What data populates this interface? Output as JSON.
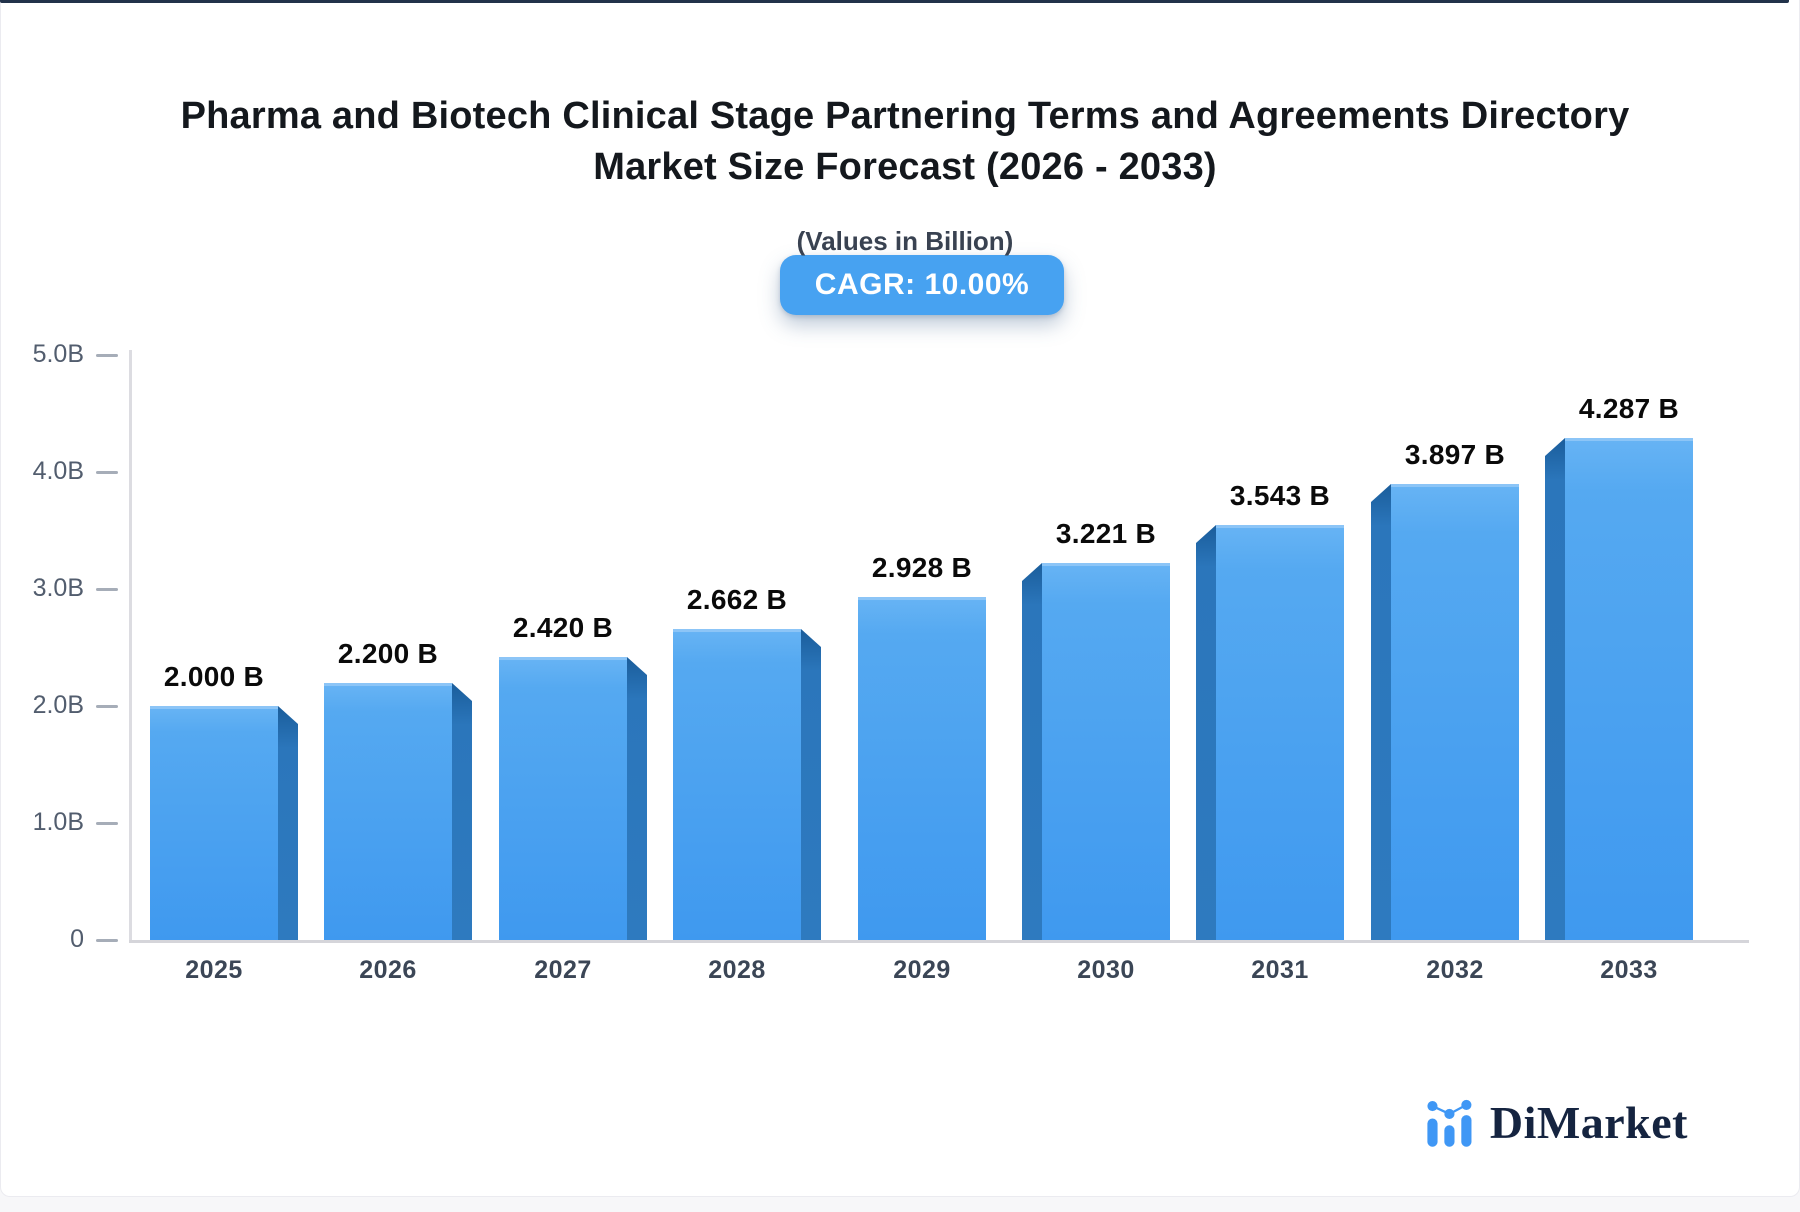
{
  "header": {
    "title_line1": "Pharma and Biotech Clinical Stage Partnering Terms and Agreements Directory",
    "title_line2": "Market Size Forecast (2026 - 2033)",
    "subtitle": "(Values in Billion)",
    "cagr_badge": "CAGR: 10.00%",
    "badge_color": "#47a2f1"
  },
  "chart_data": {
    "type": "bar",
    "title": "Pharma and Biotech Clinical Stage Partnering Terms and Agreements Directory Market Size Forecast (2026 - 2033)",
    "subtitle": "(Values in Billion)",
    "cagr": "10.00%",
    "categories": [
      "2025",
      "2026",
      "2027",
      "2028",
      "2029",
      "2030",
      "2031",
      "2032",
      "2033"
    ],
    "values": [
      2.0,
      2.2,
      2.42,
      2.662,
      2.928,
      3.221,
      3.543,
      3.897,
      4.287
    ],
    "value_labels": [
      "2.000 B",
      "2.200 B",
      "2.420 B",
      "2.662 B",
      "2.928 B",
      "3.221 B",
      "3.543 B",
      "3.897 B",
      "4.287 B"
    ],
    "unit": "Billion",
    "xlabel": "",
    "ylabel": "",
    "ylim": [
      0,
      5
    ],
    "yticks": [
      {
        "label": "5.0B",
        "value": 5.0
      },
      {
        "label": "4.0B",
        "value": 4.0
      },
      {
        "label": "3.0B",
        "value": 3.0
      },
      {
        "label": "2.0B",
        "value": 2.0
      },
      {
        "label": "1.0B",
        "value": 1.0
      },
      {
        "label": "0",
        "value": 0.0
      }
    ],
    "grid": false,
    "legend": false,
    "bar_colors": {
      "face_top": "#66b3f4",
      "face_bottom": "#3f99ef",
      "side": "#2e7abf",
      "top_edge": "#8cc5f7"
    }
  },
  "footer": {
    "logo_text": "DiMarket",
    "logo_icon": "bar-chart-logo-icon",
    "logo_blue": "#3f97f5",
    "logo_navy": "#152440"
  }
}
